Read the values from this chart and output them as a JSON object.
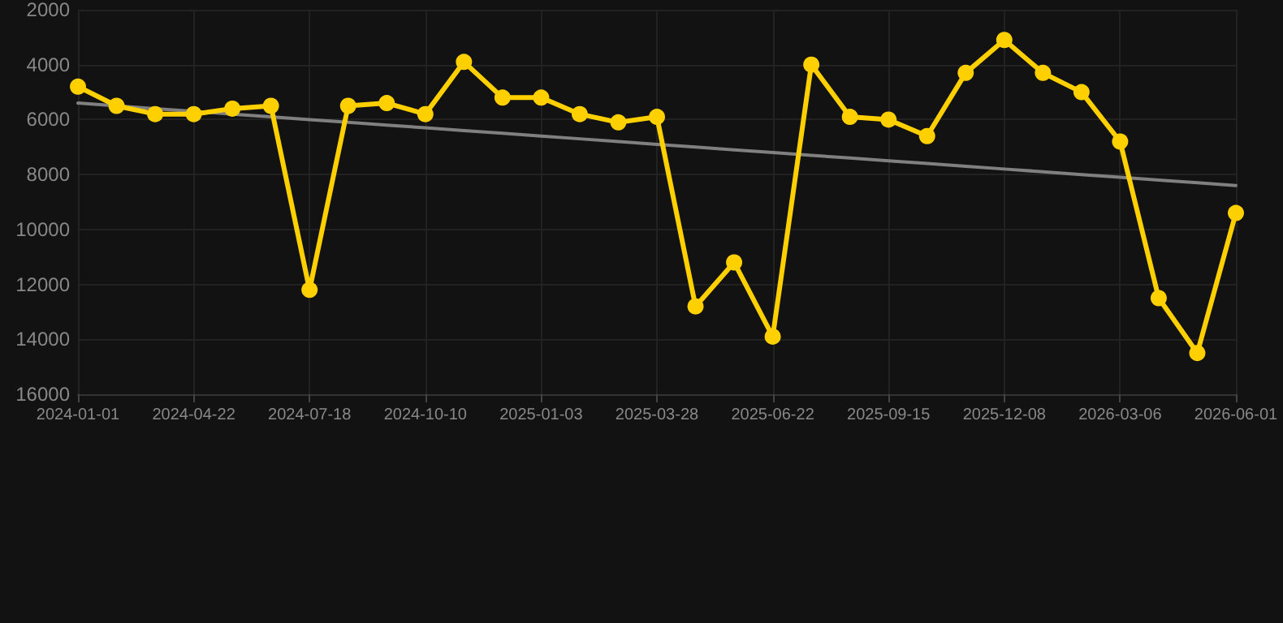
{
  "chart_data": {
    "type": "line",
    "categories": [
      "2024-01-01",
      null,
      null,
      "2024-04-22",
      null,
      null,
      "2024-07-18",
      null,
      null,
      "2024-10-10",
      null,
      null,
      "2025-01-03",
      null,
      null,
      "2025-03-28",
      null,
      null,
      "2025-06-22",
      null,
      null,
      "2025-09-15",
      null,
      null,
      "2025-12-08",
      null,
      null,
      "2026-03-06",
      null,
      null,
      "2026-06-01"
    ],
    "series": [
      {
        "color": "#ffd000",
        "marker": "circle",
        "values": [
          4800,
          5500,
          5800,
          5800,
          5600,
          5500,
          12200,
          5500,
          5400,
          5800,
          3900,
          5200,
          5200,
          5800,
          6100,
          5900,
          12800,
          11200,
          13900,
          4000,
          5900,
          6000,
          6600,
          4300,
          3100,
          4300,
          5000,
          6800,
          12500,
          14500,
          9400
        ]
      },
      {
        "type": "line",
        "color": "#808080",
        "marker": "none",
        "values": [
          5400,
          5500,
          5600,
          5700,
          5800,
          5900,
          6000,
          6100,
          6200,
          6300,
          6400,
          6500,
          6600,
          6700,
          6800,
          6900,
          7000,
          7100,
          7200,
          7300,
          7400,
          7500,
          7600,
          7700,
          7800,
          7900,
          8000,
          8100,
          8200,
          8300,
          8400
        ]
      }
    ],
    "ylim": [
      16000,
      2000
    ],
    "yticks": [
      2000,
      4000,
      6000,
      8000,
      10000,
      12000,
      14000,
      16000
    ],
    "grid": true
  }
}
